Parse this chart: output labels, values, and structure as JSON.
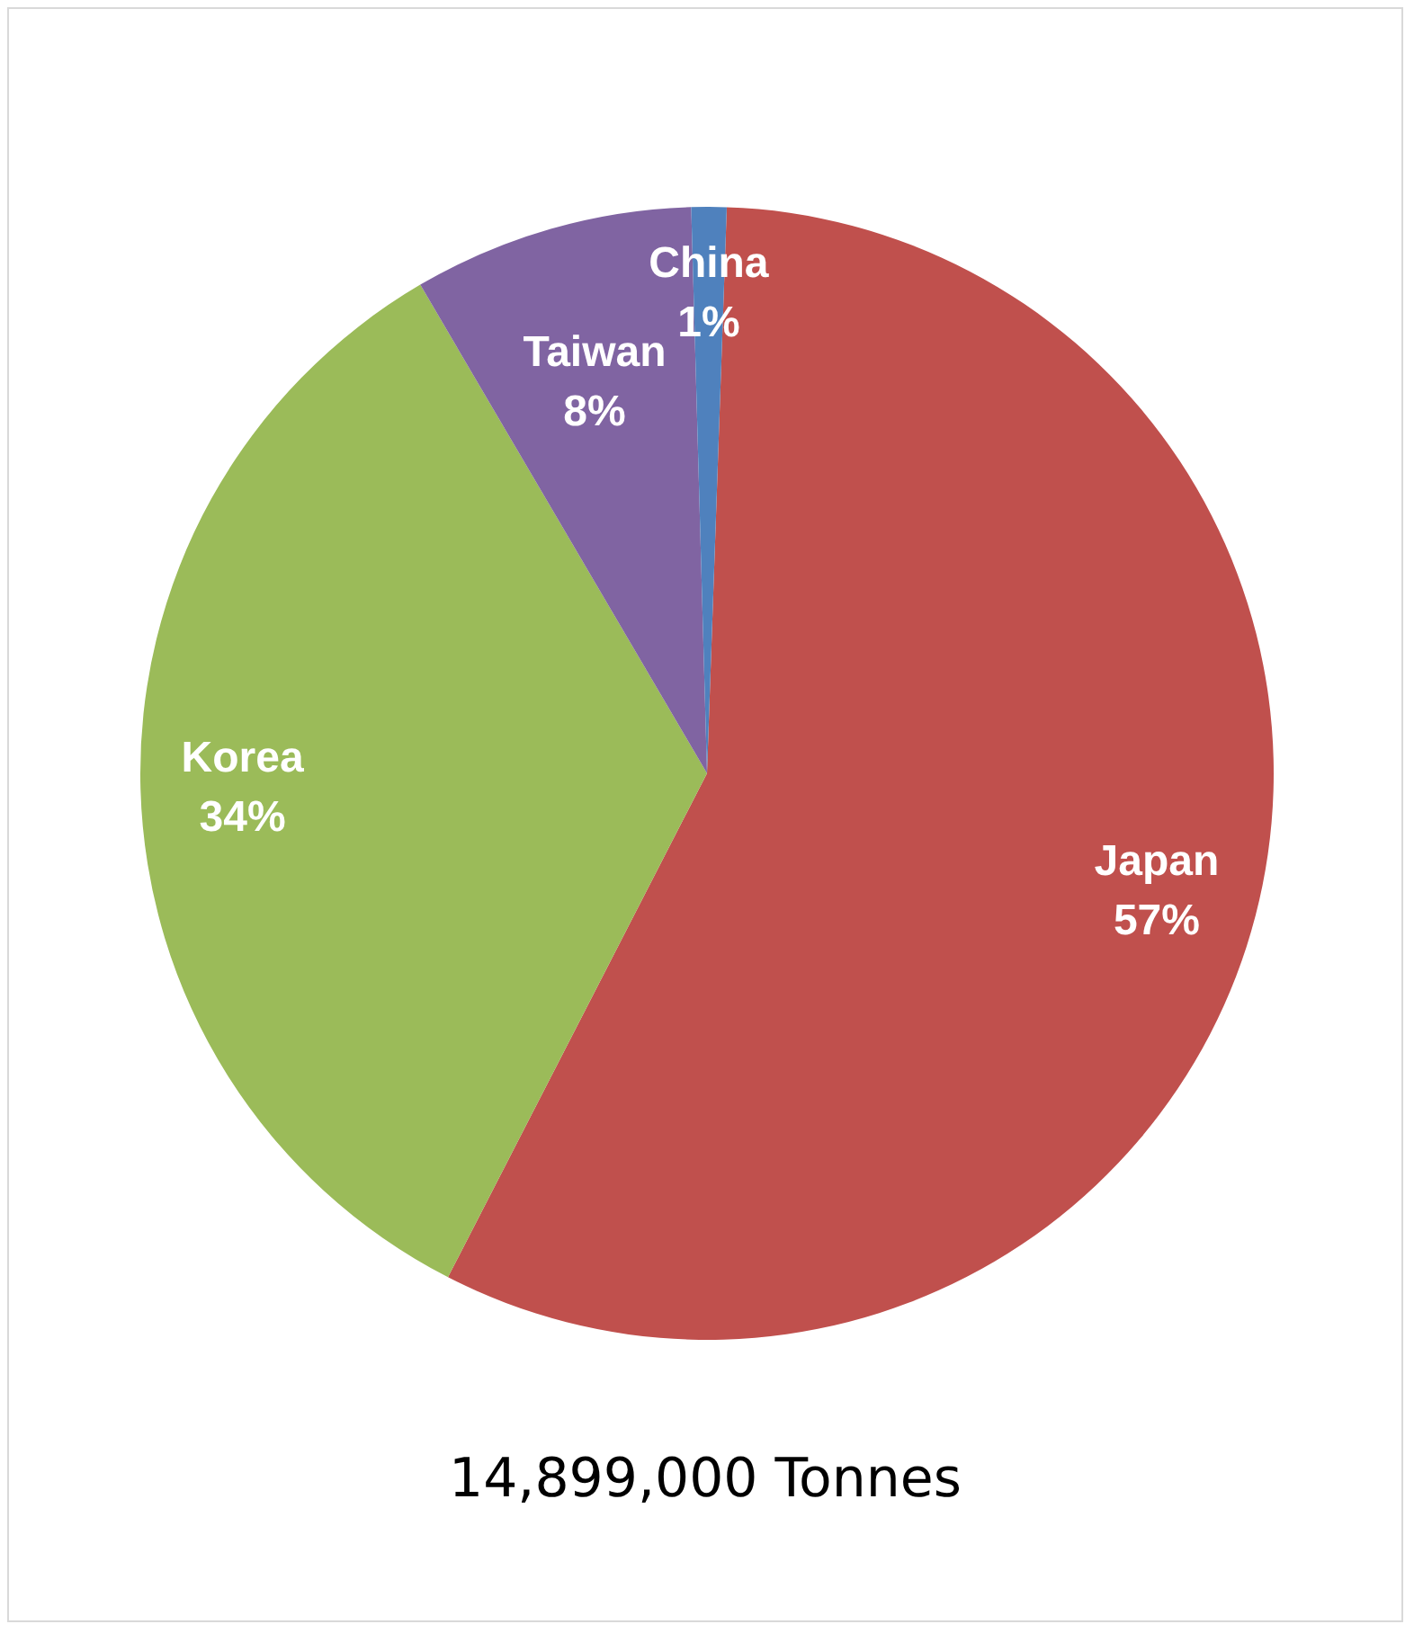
{
  "chart_data": {
    "type": "pie",
    "categories": [
      "Japan",
      "Korea",
      "Taiwan",
      "China"
    ],
    "values": [
      57,
      34,
      8,
      1
    ],
    "colors": [
      "#c0504d",
      "#9bbb59",
      "#8064a2",
      "#4f81bd"
    ],
    "value_labels": [
      "57%",
      "34%",
      "8%",
      "1%"
    ],
    "legend": false,
    "annotations": [
      "14,899,000 Tonnes"
    ]
  }
}
